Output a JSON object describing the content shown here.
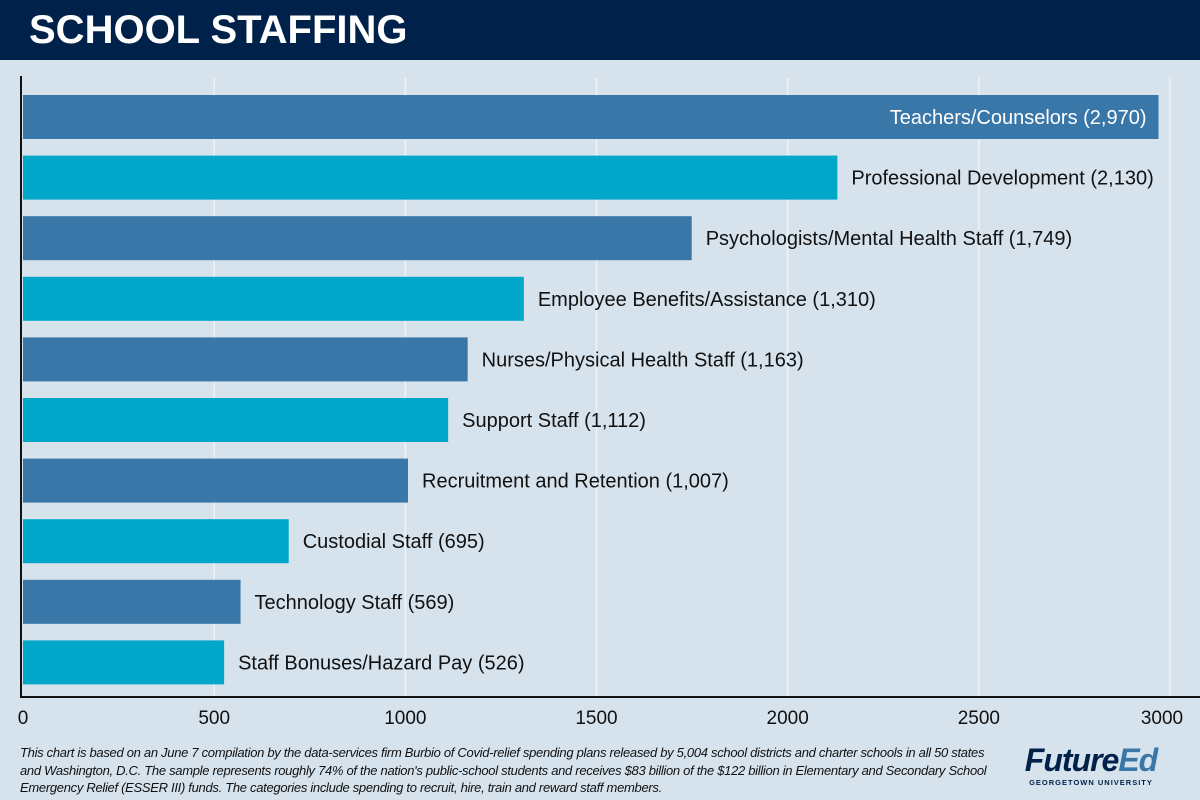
{
  "header": {
    "title": "SCHOOL STAFFING"
  },
  "chart_data": {
    "type": "bar",
    "orientation": "horizontal",
    "categories": [
      "Teachers/Counselors",
      "Professional Development",
      "Psychologists/Mental Health Staff",
      "Employee Benefits/Assistance",
      "Nurses/Physical Health Staff",
      "Support Staff",
      "Recruitment and Retention",
      "Custodial Staff",
      "Technology Staff",
      "Staff Bonuses/Hazard Pay"
    ],
    "values": [
      2970,
      2130,
      1749,
      1310,
      1163,
      1112,
      1007,
      695,
      569,
      526
    ],
    "labels": [
      "Teachers/Counselors (2,970)",
      "Professional Development (2,130)",
      "Psychologists/Mental Health Staff (1,749)",
      "Employee Benefits/Assistance (1,310)",
      "Nurses/Physical Health Staff (1,163)",
      "Support Staff (1,112)",
      "Recruitment and Retention (1,007)",
      "Custodial Staff (695)",
      "Technology Staff (569)",
      "Staff Bonuses/Hazard Pay (526)"
    ],
    "xlim": [
      0,
      3000
    ],
    "xticks": [
      "0",
      "500",
      "1000",
      "1500",
      "2000",
      "2500",
      "3000"
    ],
    "grid": true,
    "colors": [
      "#3A77A9",
      "#00A7C9"
    ]
  },
  "footnote": "This chart is based on an June 7 compilation by the data-services firm Burbio of Covid-relief spending plans released by 5,004 school districts and charter schools in all 50 states and Washington, D.C. The sample represents roughly 74% of the nation's public-school students and receives $83 billion of the $122 billion in Elementary and Secondary School Emergency Relief (ESSER III) funds. The categories include spending to recruit, hire, train and reward staff members.",
  "logo": {
    "main_a": "Future",
    "main_b": "Ed",
    "sub": "GEORGETOWN UNIVERSITY"
  }
}
